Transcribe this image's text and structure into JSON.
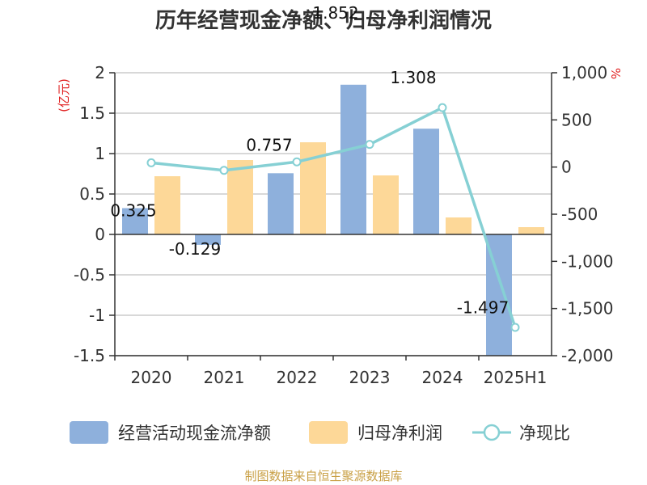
{
  "title": "历年经营现金净额、归母净利润情况",
  "source": "制图数据来自恒生聚源数据库",
  "colors": {
    "cash_flow": "#8eb0dc",
    "net_profit": "#fdd898",
    "ratio": "#86d0d4",
    "grid": "#cccccc",
    "axis": "#333333",
    "unit": "#e02020",
    "source": "#c9a046"
  },
  "chart_data": {
    "type": "bar",
    "categories": [
      "2020",
      "2021",
      "2022",
      "2023",
      "2024",
      "2025H1"
    ],
    "left_axis": {
      "unit": "(亿元)",
      "ylim": [
        -1.5,
        2
      ],
      "ticks": [
        2,
        1.5,
        1,
        0.5,
        0,
        -0.5,
        -1,
        -1.5
      ],
      "tick_labels": [
        "2",
        "1.5",
        "1",
        "0.5",
        "0",
        "-0.5",
        "-1",
        "-1.5"
      ]
    },
    "right_axis": {
      "unit": "%",
      "ylim": [
        -2000,
        1000
      ],
      "ticks": [
        1000,
        500,
        0,
        -500,
        -1000,
        -1500,
        -2000
      ],
      "tick_labels": [
        "1,000",
        "500",
        "0",
        "-500",
        "-1,000",
        "-1,500",
        "-2,000"
      ]
    },
    "grid": true,
    "legend_position": "bottom",
    "series": [
      {
        "name": "经营活动现金流净额",
        "type": "bar",
        "axis": "left",
        "values": [
          0.325,
          -0.129,
          0.757,
          1.852,
          1.308,
          -1.497
        ],
        "labels": [
          "0.325",
          "-0.129",
          "0.757",
          "1.852",
          "1.308",
          "-1.497"
        ]
      },
      {
        "name": "归母净利润",
        "type": "bar",
        "axis": "left",
        "values": [
          0.72,
          0.92,
          1.14,
          0.73,
          0.21,
          0.09
        ]
      },
      {
        "name": "净现比",
        "type": "line",
        "axis": "right",
        "values": [
          45,
          -35,
          55,
          240,
          630,
          -1700
        ]
      }
    ]
  }
}
